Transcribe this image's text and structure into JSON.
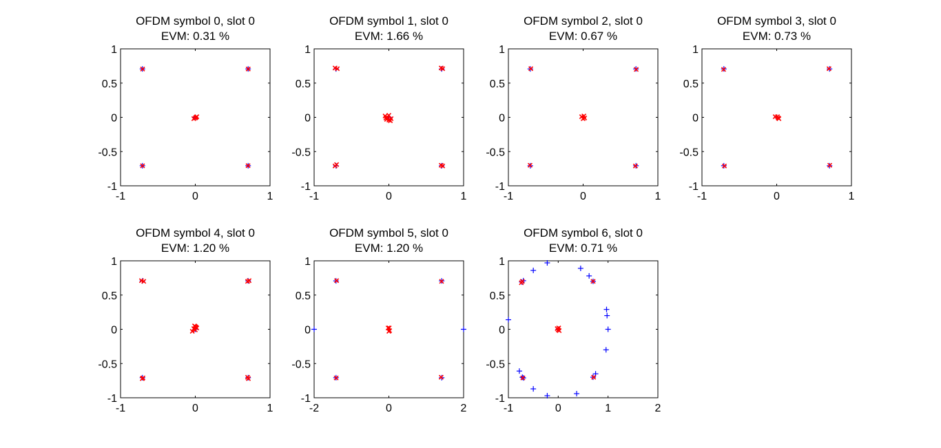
{
  "figure": {
    "background": "#ffffff",
    "axes_color": "#000000",
    "ideal_marker_color": "#0000ff",
    "received_marker_color": "#ff0000"
  },
  "chart_data": [
    {
      "type": "scatter",
      "title": "OFDM symbol 0, slot 0",
      "subtitle": "EVM: 0.31 %",
      "xlim": [
        -1,
        1
      ],
      "ylim": [
        -1,
        1
      ],
      "xticks": [
        -1,
        0,
        1
      ],
      "yticks": [
        -1,
        -0.5,
        0,
        0.5,
        1
      ],
      "xtick_labels": [
        "-1",
        "0",
        "1"
      ],
      "ytick_labels": [
        "-1",
        "-0.5",
        "0",
        "0.5",
        "1"
      ],
      "grid": false,
      "series": [
        {
          "marker": "plus",
          "color": "#0000ff",
          "points": [
            [
              -0.707,
              0.707
            ],
            [
              0.707,
              0.707
            ],
            [
              -0.707,
              -0.707
            ],
            [
              0.707,
              -0.707
            ],
            [
              0,
              0
            ]
          ]
        },
        {
          "marker": "x",
          "color": "#ff0000",
          "points": [
            [
              -0.705,
              0.705
            ],
            [
              0.708,
              0.706
            ],
            [
              -0.706,
              -0.708
            ],
            [
              0.706,
              -0.706
            ],
            [
              -0.02,
              -0.02
            ],
            [
              0.01,
              0.0
            ],
            [
              0.02,
              0.01
            ],
            [
              0.0,
              -0.01
            ]
          ]
        }
      ]
    },
    {
      "type": "scatter",
      "title": "OFDM symbol 1, slot 0",
      "subtitle": "EVM: 1.66 %",
      "xlim": [
        -1,
        1
      ],
      "ylim": [
        -1,
        1
      ],
      "xticks": [
        -1,
        0,
        1
      ],
      "yticks": [
        -1,
        -0.5,
        0,
        0.5,
        1
      ],
      "xtick_labels": [
        "-1",
        "0",
        "1"
      ],
      "ytick_labels": [
        "-1",
        "-0.5",
        "0",
        "0.5",
        "1"
      ],
      "grid": false,
      "series": [
        {
          "marker": "plus",
          "color": "#0000ff",
          "points": [
            [
              -0.707,
              0.707
            ],
            [
              0.707,
              0.707
            ],
            [
              -0.707,
              -0.707
            ],
            [
              0.707,
              -0.707
            ],
            [
              0,
              0
            ]
          ]
        },
        {
          "marker": "x",
          "color": "#ff0000",
          "points": [
            [
              -0.69,
              0.71
            ],
            [
              -0.72,
              0.72
            ],
            [
              0.7,
              0.72
            ],
            [
              0.72,
              0.71
            ],
            [
              -0.7,
              -0.69
            ],
            [
              -0.72,
              -0.71
            ],
            [
              0.7,
              -0.7
            ],
            [
              0.72,
              -0.71
            ],
            [
              -0.05,
              0.02
            ],
            [
              -0.03,
              -0.03
            ],
            [
              0.0,
              0.03
            ],
            [
              0.02,
              -0.05
            ],
            [
              -0.02,
              0.0
            ],
            [
              0.03,
              -0.02
            ],
            [
              0.0,
              -0.04
            ],
            [
              -0.04,
              -0.01
            ]
          ]
        }
      ]
    },
    {
      "type": "scatter",
      "title": "OFDM symbol 2, slot 0",
      "subtitle": "EVM: 0.67 %",
      "xlim": [
        -1,
        1
      ],
      "ylim": [
        -1,
        1
      ],
      "xticks": [
        -1,
        0,
        1
      ],
      "yticks": [
        -1,
        -0.5,
        0,
        0.5,
        1
      ],
      "xtick_labels": [
        "-1",
        "0",
        "1"
      ],
      "ytick_labels": [
        "-1",
        "-0.5",
        "0",
        "0.5",
        "1"
      ],
      "grid": false,
      "series": [
        {
          "marker": "plus",
          "color": "#0000ff",
          "points": [
            [
              -0.707,
              0.707
            ],
            [
              0.707,
              0.707
            ],
            [
              -0.707,
              -0.707
            ],
            [
              0.707,
              -0.707
            ],
            [
              0,
              0
            ]
          ]
        },
        {
          "marker": "x",
          "color": "#ff0000",
          "points": [
            [
              -0.7,
              0.71
            ],
            [
              0.71,
              0.7
            ],
            [
              -0.71,
              -0.7
            ],
            [
              0.7,
              -0.71
            ],
            [
              -0.02,
              0.01
            ],
            [
              0.02,
              -0.01
            ],
            [
              0.0,
              -0.02
            ],
            [
              0.01,
              0.02
            ]
          ]
        }
      ]
    },
    {
      "type": "scatter",
      "title": "OFDM symbol 3, slot 0",
      "subtitle": "EVM: 0.73 %",
      "xlim": [
        -1,
        1
      ],
      "ylim": [
        -1,
        1
      ],
      "xticks": [
        -1,
        0,
        1
      ],
      "yticks": [
        -1,
        -0.5,
        0,
        0.5,
        1
      ],
      "xtick_labels": [
        "-1",
        "0",
        "1"
      ],
      "ytick_labels": [
        "-1",
        "-0.5",
        "0",
        "0.5",
        "1"
      ],
      "grid": false,
      "series": [
        {
          "marker": "plus",
          "color": "#0000ff",
          "points": [
            [
              -0.707,
              0.707
            ],
            [
              0.707,
              0.707
            ],
            [
              -0.707,
              -0.707
            ],
            [
              0.707,
              -0.707
            ],
            [
              0,
              0
            ]
          ]
        },
        {
          "marker": "x",
          "color": "#ff0000",
          "points": [
            [
              -0.71,
              0.7
            ],
            [
              0.7,
              0.71
            ],
            [
              -0.7,
              -0.71
            ],
            [
              0.71,
              -0.7
            ],
            [
              -0.02,
              0.01
            ],
            [
              0.02,
              -0.01
            ],
            [
              0.01,
              0.01
            ],
            [
              0.03,
              -0.02
            ]
          ]
        }
      ]
    },
    {
      "type": "scatter",
      "title": "OFDM symbol 4, slot 0",
      "subtitle": "EVM: 1.20 %",
      "xlim": [
        -1,
        1
      ],
      "ylim": [
        -1,
        1
      ],
      "xticks": [
        -1,
        0,
        1
      ],
      "yticks": [
        -1,
        -0.5,
        0,
        0.5,
        1
      ],
      "xtick_labels": [
        "-1",
        "0",
        "1"
      ],
      "ytick_labels": [
        "-1",
        "-0.5",
        "0",
        "0.5",
        "1"
      ],
      "grid": false,
      "series": [
        {
          "marker": "plus",
          "color": "#0000ff",
          "points": [
            [
              -0.707,
              0.707
            ],
            [
              0.707,
              0.707
            ],
            [
              -0.707,
              -0.707
            ],
            [
              0.707,
              -0.707
            ],
            [
              0,
              0
            ]
          ]
        },
        {
          "marker": "x",
          "color": "#ff0000",
          "points": [
            [
              -0.69,
              0.7
            ],
            [
              -0.72,
              0.71
            ],
            [
              0.7,
              0.7
            ],
            [
              0.72,
              0.71
            ],
            [
              -0.7,
              -0.71
            ],
            [
              -0.71,
              -0.72
            ],
            [
              0.7,
              -0.7
            ],
            [
              0.71,
              -0.72
            ],
            [
              -0.04,
              -0.03
            ],
            [
              -0.02,
              0.01
            ],
            [
              0.0,
              0.04
            ],
            [
              0.02,
              0.02
            ],
            [
              0.0,
              -0.01
            ],
            [
              0.01,
              0.03
            ],
            [
              -0.01,
              0.05
            ]
          ]
        }
      ]
    },
    {
      "type": "scatter",
      "title": "OFDM symbol 5, slot 0",
      "subtitle": "EVM: 1.20 %",
      "xlim": [
        -2,
        2
      ],
      "ylim": [
        -1,
        1
      ],
      "xticks": [
        -2,
        0,
        2
      ],
      "yticks": [
        -1,
        -0.5,
        0,
        0.5,
        1
      ],
      "xtick_labels": [
        "-2",
        "0",
        "2"
      ],
      "ytick_labels": [
        "-1",
        "-0.5",
        "0",
        "0.5",
        "1"
      ],
      "grid": false,
      "series": [
        {
          "marker": "plus",
          "color": "#0000ff",
          "points": [
            [
              -1.414,
              0.707
            ],
            [
              1.414,
              0.707
            ],
            [
              -1.414,
              -0.707
            ],
            [
              1.414,
              -0.707
            ],
            [
              -2,
              0
            ],
            [
              2,
              0
            ],
            [
              0,
              0
            ]
          ]
        },
        {
          "marker": "x",
          "color": "#ff0000",
          "points": [
            [
              -1.4,
              0.71
            ],
            [
              1.41,
              0.7
            ],
            [
              -1.41,
              -0.71
            ],
            [
              1.4,
              -0.7
            ],
            [
              -0.02,
              0.02
            ],
            [
              0.02,
              -0.02
            ],
            [
              0.0,
              -0.03
            ],
            [
              0.01,
              0.02
            ]
          ]
        }
      ]
    },
    {
      "type": "scatter",
      "title": "OFDM symbol 6, slot 0",
      "subtitle": "EVM: 0.71 %",
      "xlim": [
        -1,
        2
      ],
      "ylim": [
        -1,
        1
      ],
      "xticks": [
        -1,
        0,
        1,
        2
      ],
      "yticks": [
        -1,
        -0.5,
        0,
        0.5,
        1
      ],
      "xtick_labels": [
        "-1",
        "0",
        "1",
        "2"
      ],
      "ytick_labels": [
        "-1",
        "-0.5",
        "0",
        "0.5",
        "1"
      ],
      "grid": false,
      "series": [
        {
          "marker": "plus",
          "color": "#0000ff",
          "points": [
            [
              -0.22,
              0.97
            ],
            [
              0.45,
              0.89
            ],
            [
              0.62,
              0.78
            ],
            [
              0.7,
              0.7
            ],
            [
              -0.5,
              0.86
            ],
            [
              -0.7,
              0.71
            ],
            [
              -0.73,
              0.69
            ],
            [
              -1.0,
              0.14
            ],
            [
              0.97,
              0.29
            ],
            [
              0.98,
              0.2
            ],
            [
              1.0,
              0.0
            ],
            [
              0.96,
              -0.3
            ],
            [
              -0.78,
              -0.61
            ],
            [
              -0.7,
              -0.71
            ],
            [
              -0.72,
              -0.7
            ],
            [
              -0.5,
              -0.87
            ],
            [
              -0.22,
              -0.97
            ],
            [
              0.37,
              -0.94
            ],
            [
              0.75,
              -0.65
            ],
            [
              0.7,
              -0.7
            ],
            [
              0,
              0
            ]
          ]
        },
        {
          "marker": "x",
          "color": "#ff0000",
          "points": [
            [
              0.7,
              0.7
            ],
            [
              -0.72,
              0.7
            ],
            [
              -0.71,
              -0.71
            ],
            [
              0.71,
              -0.7
            ],
            [
              -0.02,
              0.01
            ],
            [
              0.01,
              0.02
            ],
            [
              0.0,
              -0.01
            ],
            [
              0.02,
              -0.02
            ],
            [
              -0.74,
              0.68
            ]
          ]
        }
      ]
    }
  ]
}
